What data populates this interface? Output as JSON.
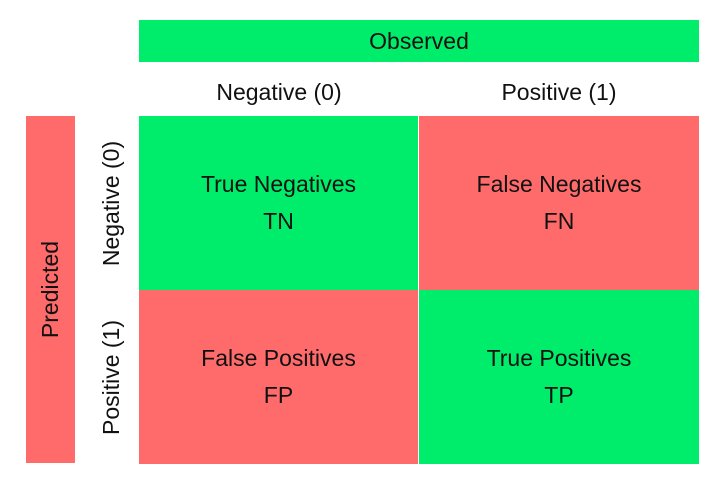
{
  "colors": {
    "correct": "#00EC6B",
    "incorrect": "#FF6B6B"
  },
  "observed_label": "Observed",
  "predicted_label": "Predicted",
  "columns": [
    "Negative (0)",
    "Positive (1)"
  ],
  "rows": [
    "Negative (0)",
    "Positive (1)"
  ],
  "cells": [
    [
      {
        "label": "True Negatives",
        "abbr": "TN",
        "status": "correct"
      },
      {
        "label": "False Negatives",
        "abbr": "FN",
        "status": "incorrect"
      }
    ],
    [
      {
        "label": "False Positives",
        "abbr": "FP",
        "status": "incorrect"
      },
      {
        "label": "True Positives",
        "abbr": "TP",
        "status": "correct"
      }
    ]
  ]
}
